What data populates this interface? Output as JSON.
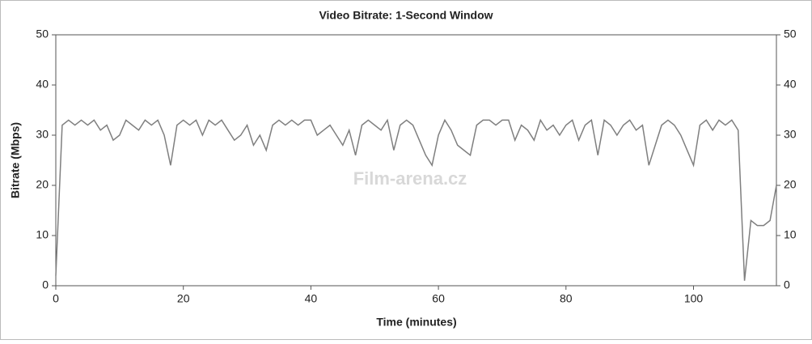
{
  "chart_data": {
    "type": "line",
    "title": "Video Bitrate: 1-Second Window",
    "x_label": "Time (minutes)",
    "y_label": "Bitrate (Mbps)",
    "watermark": "Film-arena.cz",
    "x": [
      0,
      1,
      2,
      3,
      4,
      5,
      6,
      7,
      8,
      9,
      10,
      11,
      12,
      13,
      14,
      15,
      16,
      17,
      18,
      19,
      20,
      21,
      22,
      23,
      24,
      25,
      26,
      27,
      28,
      29,
      30,
      31,
      32,
      33,
      34,
      35,
      36,
      37,
      38,
      39,
      40,
      41,
      42,
      43,
      44,
      45,
      46,
      47,
      48,
      49,
      50,
      51,
      52,
      53,
      54,
      55,
      56,
      57,
      58,
      59,
      60,
      61,
      62,
      63,
      64,
      65,
      66,
      67,
      68,
      69,
      70,
      71,
      72,
      73,
      74,
      75,
      76,
      77,
      78,
      79,
      80,
      81,
      82,
      83,
      84,
      85,
      86,
      87,
      88,
      89,
      90,
      91,
      92,
      93,
      94,
      95,
      96,
      97,
      98,
      99,
      100,
      101,
      102,
      103,
      104,
      105,
      106,
      107,
      108,
      109,
      110,
      111,
      112,
      113
    ],
    "values": [
      2,
      32,
      33,
      32,
      33,
      32,
      33,
      31,
      32,
      29,
      30,
      33,
      32,
      31,
      33,
      32,
      33,
      30,
      24,
      32,
      33,
      32,
      33,
      30,
      33,
      32,
      33,
      31,
      29,
      30,
      32,
      28,
      30,
      27,
      32,
      33,
      32,
      33,
      32,
      33,
      33,
      30,
      31,
      32,
      30,
      28,
      31,
      26,
      32,
      33,
      32,
      31,
      33,
      27,
      32,
      33,
      32,
      29,
      26,
      24,
      30,
      33,
      31,
      28,
      27,
      26,
      32,
      33,
      33,
      32,
      33,
      33,
      29,
      32,
      31,
      29,
      33,
      31,
      32,
      30,
      32,
      33,
      29,
      32,
      33,
      26,
      33,
      32,
      30,
      32,
      33,
      31,
      32,
      24,
      28,
      32,
      33,
      32,
      30,
      27,
      24,
      32,
      33,
      31,
      33,
      32,
      33,
      31,
      1,
      13,
      12,
      12,
      13,
      20
    ],
    "color": "#7f7f7f",
    "xlim": [
      0,
      113
    ],
    "xticks": [
      0,
      20,
      40,
      60,
      80,
      100
    ],
    "ylim": [
      0,
      50
    ],
    "yticks": [
      0,
      10,
      20,
      30,
      40,
      50
    ]
  }
}
